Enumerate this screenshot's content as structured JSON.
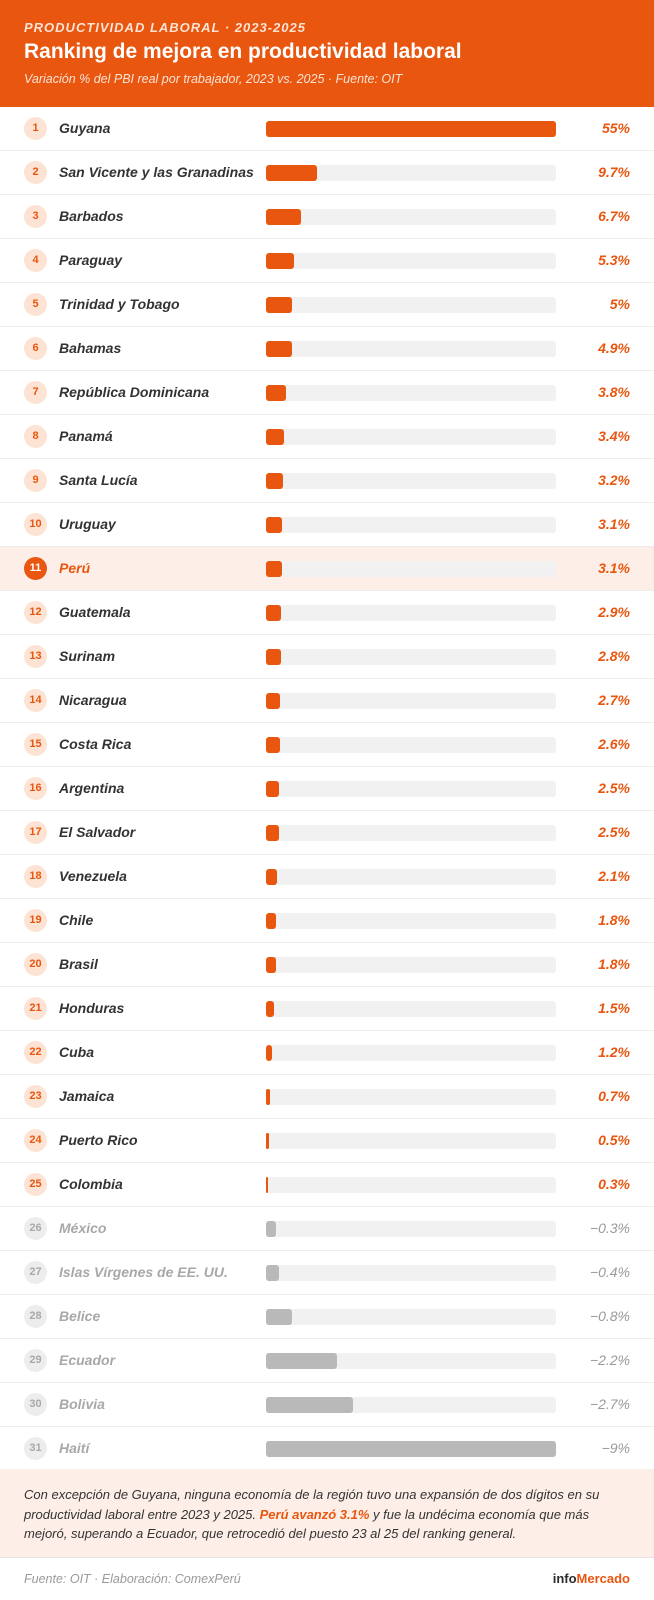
{
  "header": {
    "kicker": "PRODUCTIVIDAD LABORAL · 2023-2025",
    "title": "Ranking de mejora en productividad laboral",
    "subtitle": "Variación % del PBI real por trabajador, 2023 vs. 2025 · Fuente: OIT"
  },
  "chart_data": {
    "type": "bar",
    "orientation": "horizontal",
    "title": "Ranking de mejora en productividad laboral",
    "unit": "%",
    "highlight": "Perú",
    "scale_max": 55,
    "colors": {
      "positive": "#e8560f",
      "negative": "#b9b9b9",
      "track": "#f1f1f1"
    },
    "rows": [
      {
        "rank": "1",
        "country": "Guyana",
        "value": 55,
        "label": "55%"
      },
      {
        "rank": "2",
        "country": "San Vicente y las Granadinas",
        "value": 9.7,
        "label": "9.7%"
      },
      {
        "rank": "3",
        "country": "Barbados",
        "value": 6.7,
        "label": "6.7%"
      },
      {
        "rank": "4",
        "country": "Paraguay",
        "value": 5.3,
        "label": "5.3%"
      },
      {
        "rank": "5",
        "country": "Trinidad y Tobago",
        "value": 5,
        "label": "5%"
      },
      {
        "rank": "6",
        "country": "Bahamas",
        "value": 4.9,
        "label": "4.9%"
      },
      {
        "rank": "7",
        "country": "República Dominicana",
        "value": 3.8,
        "label": "3.8%"
      },
      {
        "rank": "8",
        "country": "Panamá",
        "value": 3.4,
        "label": "3.4%"
      },
      {
        "rank": "9",
        "country": "Santa Lucía",
        "value": 3.2,
        "label": "3.2%"
      },
      {
        "rank": "10",
        "country": "Uruguay",
        "value": 3.1,
        "label": "3.1%"
      },
      {
        "rank": "11",
        "country": "Perú",
        "value": 3.1,
        "label": "3.1%"
      },
      {
        "rank": "12",
        "country": "Guatemala",
        "value": 2.9,
        "label": "2.9%"
      },
      {
        "rank": "13",
        "country": "Surinam",
        "value": 2.8,
        "label": "2.8%"
      },
      {
        "rank": "14",
        "country": "Nicaragua",
        "value": 2.7,
        "label": "2.7%"
      },
      {
        "rank": "15",
        "country": "Costa Rica",
        "value": 2.6,
        "label": "2.6%"
      },
      {
        "rank": "16",
        "country": "Argentina",
        "value": 2.5,
        "label": "2.5%"
      },
      {
        "rank": "17",
        "country": "El Salvador",
        "value": 2.5,
        "label": "2.5%"
      },
      {
        "rank": "18",
        "country": "Venezuela",
        "value": 2.1,
        "label": "2.1%"
      },
      {
        "rank": "19",
        "country": "Chile",
        "value": 1.8,
        "label": "1.8%"
      },
      {
        "rank": "20",
        "country": "Brasil",
        "value": 1.8,
        "label": "1.8%"
      },
      {
        "rank": "21",
        "country": "Honduras",
        "value": 1.5,
        "label": "1.5%"
      },
      {
        "rank": "22",
        "country": "Cuba",
        "value": 1.2,
        "label": "1.2%"
      },
      {
        "rank": "23",
        "country": "Jamaica",
        "value": 0.7,
        "label": "0.7%"
      },
      {
        "rank": "24",
        "country": "Puerto Rico",
        "value": 0.5,
        "label": "0.5%"
      },
      {
        "rank": "25",
        "country": "Colombia",
        "value": 0.3,
        "label": "0.3%"
      },
      {
        "rank": "26",
        "country": "México",
        "value": -0.3,
        "label": "−0.3%"
      },
      {
        "rank": "27",
        "country": "Islas Vírgenes de EE. UU.",
        "value": -0.4,
        "label": "−0.4%"
      },
      {
        "rank": "28",
        "country": "Belice",
        "value": -0.8,
        "label": "−0.8%"
      },
      {
        "rank": "29",
        "country": "Ecuador",
        "value": -2.2,
        "label": "−2.2%"
      },
      {
        "rank": "30",
        "country": "Bolivia",
        "value": -2.7,
        "label": "−2.7%"
      },
      {
        "rank": "31",
        "country": "Haití",
        "value": -9,
        "label": "−9%"
      }
    ]
  },
  "note": {
    "text_before": "Con excepción de Guyana, ninguna economía de la región tuvo una expansión de dos dígitos en su productividad laboral entre 2023 y 2025. ",
    "highlight": "Perú avanzó 3.1%",
    "text_after": " y fue la undécima economía que más mejoró, superando a Ecuador, que retrocedió del puesto 23 al 25 del ranking general."
  },
  "footer": {
    "source": "Fuente: OIT · Elaboración: ComexPerú",
    "brand_part1": "info",
    "brand_part2": "Mercado"
  }
}
